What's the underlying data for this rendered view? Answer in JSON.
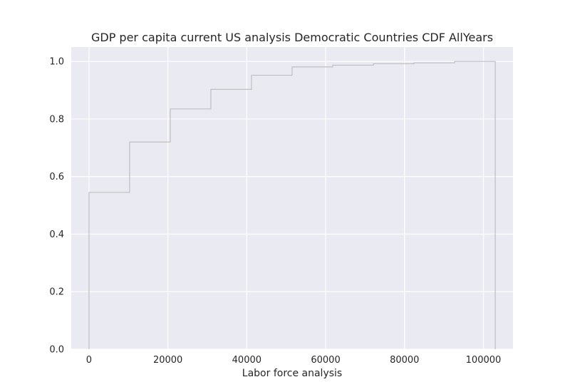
{
  "chart_data": {
    "type": "line",
    "subtype": "step-cdf",
    "title": "GDP per capita current US analysis Democratic Countries CDF AllYears",
    "xlabel": "Labor force analysis",
    "ylabel": "",
    "xlim": [
      -4500,
      107500
    ],
    "ylim": [
      0,
      1.05
    ],
    "xticks": [
      0,
      20000,
      40000,
      60000,
      80000,
      100000
    ],
    "xtick_labels": [
      "0",
      "20000",
      "40000",
      "60000",
      "80000",
      "100000"
    ],
    "yticks": [
      0.0,
      0.2,
      0.4,
      0.6,
      0.8,
      1.0
    ],
    "ytick_labels": [
      "0.0",
      "0.2",
      "0.4",
      "0.6",
      "0.8",
      "1.0"
    ],
    "grid": true,
    "background": "#eaeaf2",
    "line_color": "#bfbfbf",
    "series": [
      {
        "x": [
          0,
          10300,
          20600,
          30900,
          41200,
          51500,
          61800,
          72100,
          82400,
          92700,
          103000
        ],
        "y": [
          0.545,
          0.72,
          0.835,
          0.903,
          0.952,
          0.981,
          0.987,
          0.992,
          0.995,
          1.0,
          1.0
        ]
      }
    ]
  }
}
